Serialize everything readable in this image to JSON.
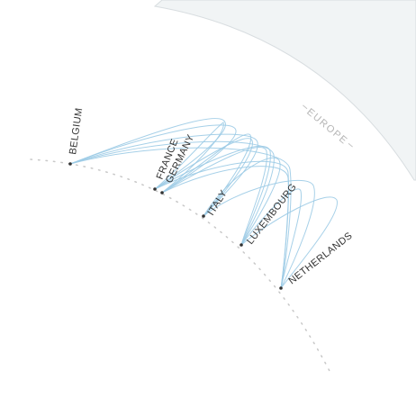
{
  "region": {
    "label": "EUROPE"
  },
  "countries": [
    {
      "name": "BELGIUM"
    },
    {
      "name": "FRANCE"
    },
    {
      "name": "GERMANY"
    },
    {
      "name": "ITALY"
    },
    {
      "name": "LUXEMBOURG"
    },
    {
      "name": "NETHERLANDS"
    }
  ],
  "colors": {
    "arc": "#9ccbe6",
    "node": "#333333",
    "region_band": "#f1f4f5",
    "orbit": "#c8c8c8"
  }
}
